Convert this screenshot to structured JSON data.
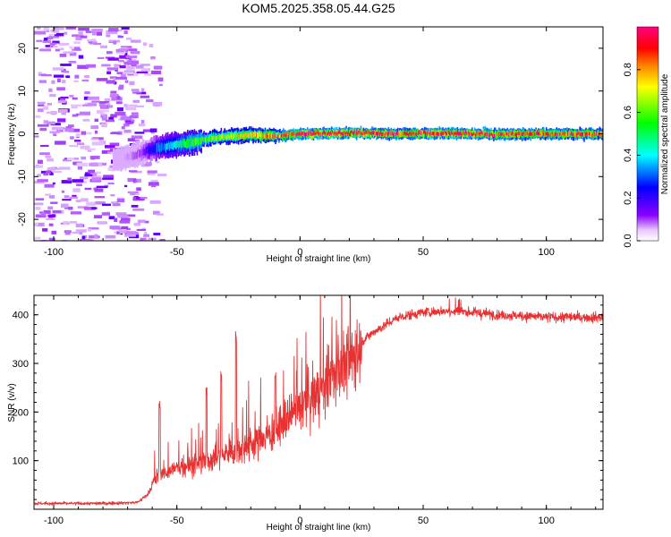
{
  "title": "KOM5.2025.358.05.44.G25",
  "colors": {
    "snr_line": "#e83232",
    "axis": "#000000",
    "background": "#ffffff"
  },
  "chart_data": [
    {
      "type": "heatmap",
      "name": "spectrogram",
      "xlabel": "Height of straight line (km)",
      "ylabel": "Frequency (Hz)",
      "xlim": [
        -108,
        123
      ],
      "ylim": [
        -25,
        25
      ],
      "x_ticks": [
        -100,
        -50,
        0,
        50,
        100
      ],
      "y_ticks": [
        -20,
        -10,
        0,
        10,
        20
      ],
      "colorbar": {
        "label": "Normalized spectral amplitude",
        "range": [
          0,
          1
        ],
        "ticks": [
          "0.0",
          "0.2",
          "0.4",
          "0.6",
          "0.8"
        ],
        "tick_values": [
          0.0,
          0.2,
          0.4,
          0.6,
          0.8
        ],
        "colormap": "hsv-reversed (violet low, red high)"
      },
      "ridge": {
        "x": [
          -73,
          -65,
          -58,
          -50,
          -42,
          -35,
          -28,
          -20,
          -10,
          0,
          20,
          40,
          60,
          80,
          100,
          123
        ],
        "freq": [
          -6.0,
          -4.5,
          -3.2,
          -2.5,
          -1.8,
          -0.9,
          -0.5,
          -0.3,
          -0.5,
          0.0,
          0.2,
          0.0,
          0.1,
          -0.1,
          0.0,
          0.0
        ],
        "amplitude": [
          0.05,
          0.1,
          0.3,
          0.45,
          0.55,
          0.65,
          0.7,
          0.75,
          0.8,
          0.95,
          0.95,
          0.9,
          0.95,
          0.9,
          0.88,
          0.85
        ]
      },
      "noise_region_km": [
        -108,
        -62
      ]
    },
    {
      "type": "line",
      "name": "snr",
      "xlabel": "Height of straight line (km)",
      "ylabel": "SNR (v/v)",
      "xlim": [
        -108,
        123
      ],
      "ylim": [
        0,
        440
      ],
      "x_ticks": [
        -100,
        -50,
        0,
        50,
        100
      ],
      "y_ticks": [
        100,
        200,
        300,
        400
      ],
      "trend": {
        "x": [
          -108,
          -80,
          -66,
          -62,
          -58,
          -50,
          -40,
          -30,
          -20,
          -10,
          0,
          10,
          20,
          25,
          30,
          40,
          50,
          60,
          70,
          80,
          90,
          100,
          110,
          123
        ],
        "snr": [
          12,
          12,
          14,
          30,
          70,
          85,
          95,
          115,
          135,
          160,
          205,
          255,
          305,
          345,
          365,
          395,
          405,
          408,
          405,
          400,
          398,
          395,
          395,
          395
        ]
      },
      "spikes": [
        {
          "x": -57,
          "snr": 225
        },
        {
          "x": -38,
          "snr": 255
        },
        {
          "x": -32,
          "snr": 285
        },
        {
          "x": -26,
          "snr": 370
        },
        {
          "x": -10,
          "snr": 295
        }
      ]
    }
  ]
}
